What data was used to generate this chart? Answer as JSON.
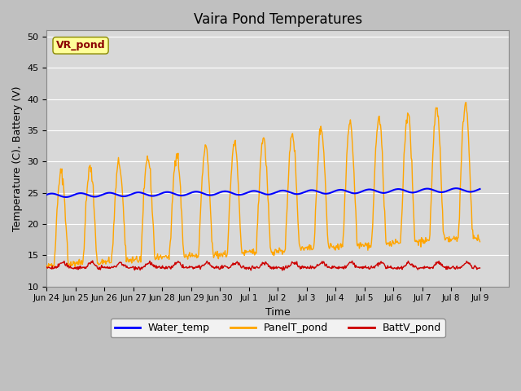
{
  "title": "Vaira Pond Temperatures",
  "xlabel": "Time",
  "ylabel": "Temperature (C), Battery (V)",
  "ylim": [
    10,
    51
  ],
  "yticks": [
    10,
    15,
    20,
    25,
    30,
    35,
    40,
    45,
    50
  ],
  "station_label": "VR_pond",
  "bg_color": "#e8e8e8",
  "plot_bg_color": "#d8d8d8",
  "water_color": "#0000ff",
  "panel_color": "#ffa500",
  "batt_color": "#cc0000",
  "legend_labels": [
    "Water_temp",
    "PanelT_pond",
    "BattV_pond"
  ]
}
